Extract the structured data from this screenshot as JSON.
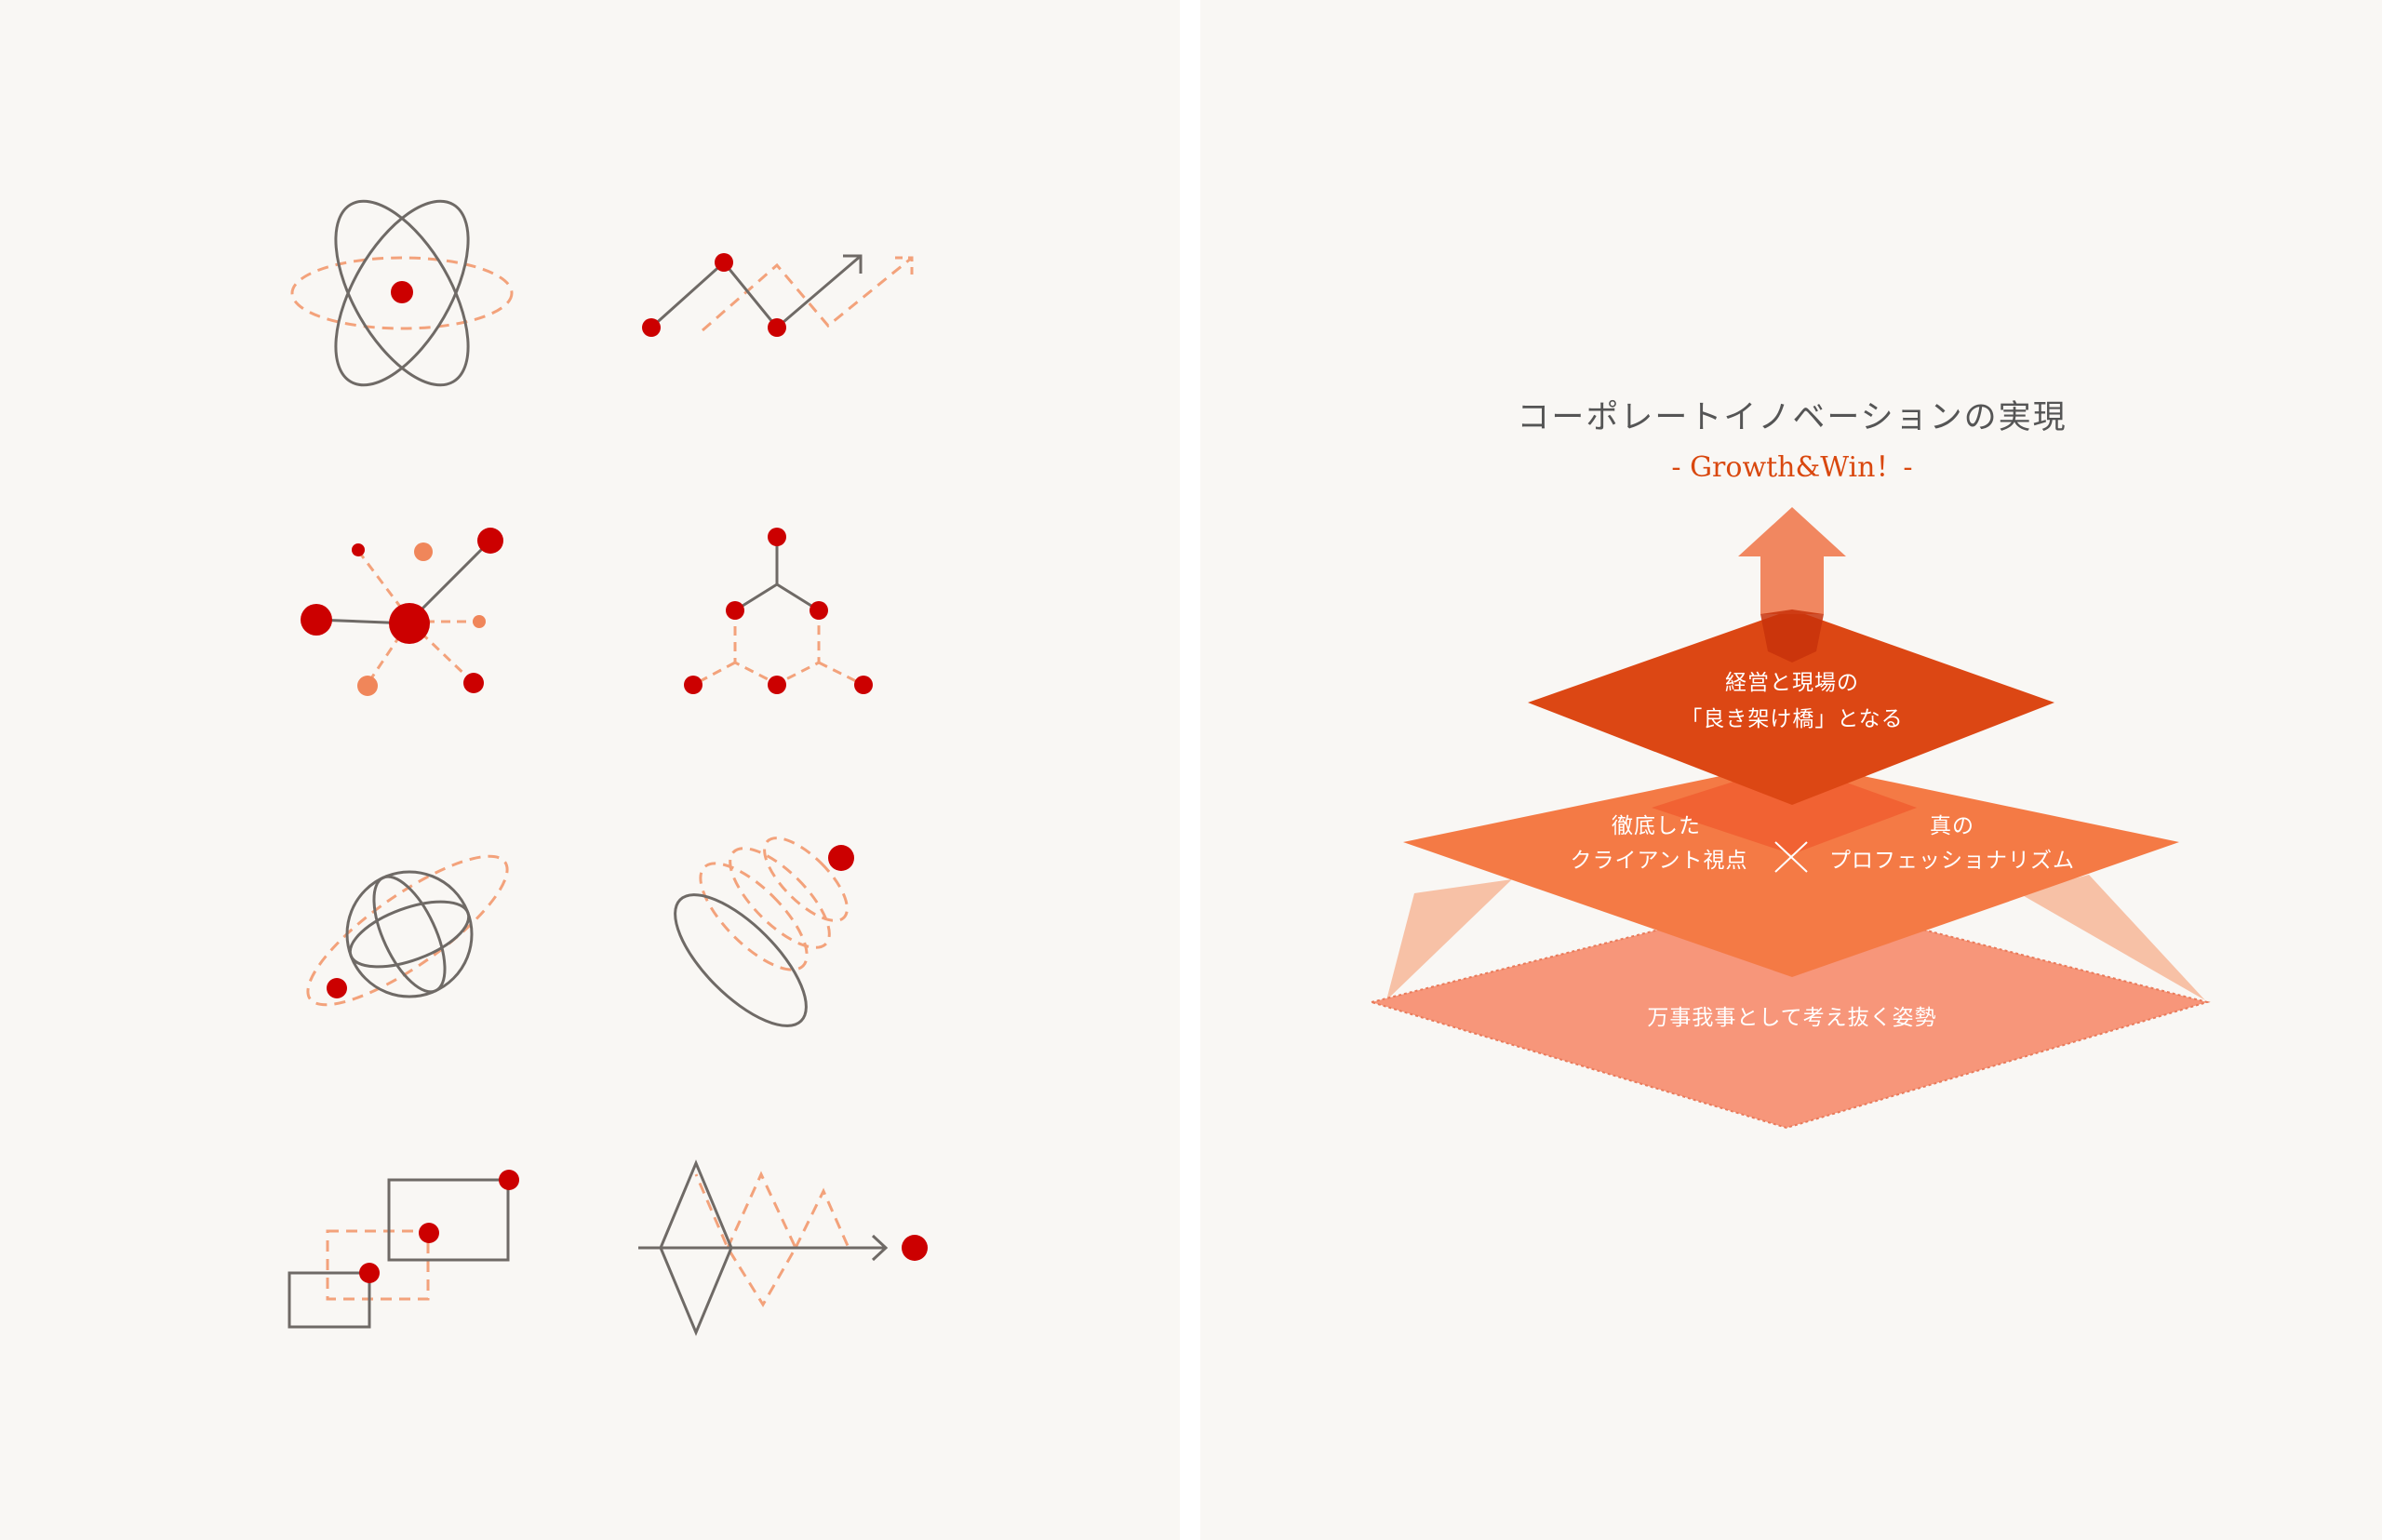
{
  "colors": {
    "background": "#f9f7f4",
    "line": "#6f6a66",
    "accent_red": "#cc0000",
    "accent_orange": "#f3a27b",
    "layer_top": "#dc4714",
    "layer_middle": "#f47a45",
    "layer_bottom": "#f7967a"
  },
  "icons": [
    "atom-orbit-icon",
    "growth-zigzag-icon",
    "network-nodes-icon",
    "triangle-tree-icon",
    "globe-orbit-icon",
    "spiral-disc-icon",
    "overlapping-rects-icon",
    "diamond-wave-arrow-icon"
  ],
  "diagram": {
    "title": "コーポレートイノベーションの実現",
    "subtitle": "- Growth&Win！-",
    "layers": {
      "top": {
        "line1": "経営と現場の",
        "line2": "「良き架け橋」となる"
      },
      "middle": {
        "left_line1": "徹底した",
        "left_line2": "クライアント視点",
        "right_line1": "真の",
        "right_line2": "プロフェッショナリズム"
      },
      "bottom": {
        "line1": "万事我事として考え抜く姿勢"
      }
    }
  }
}
